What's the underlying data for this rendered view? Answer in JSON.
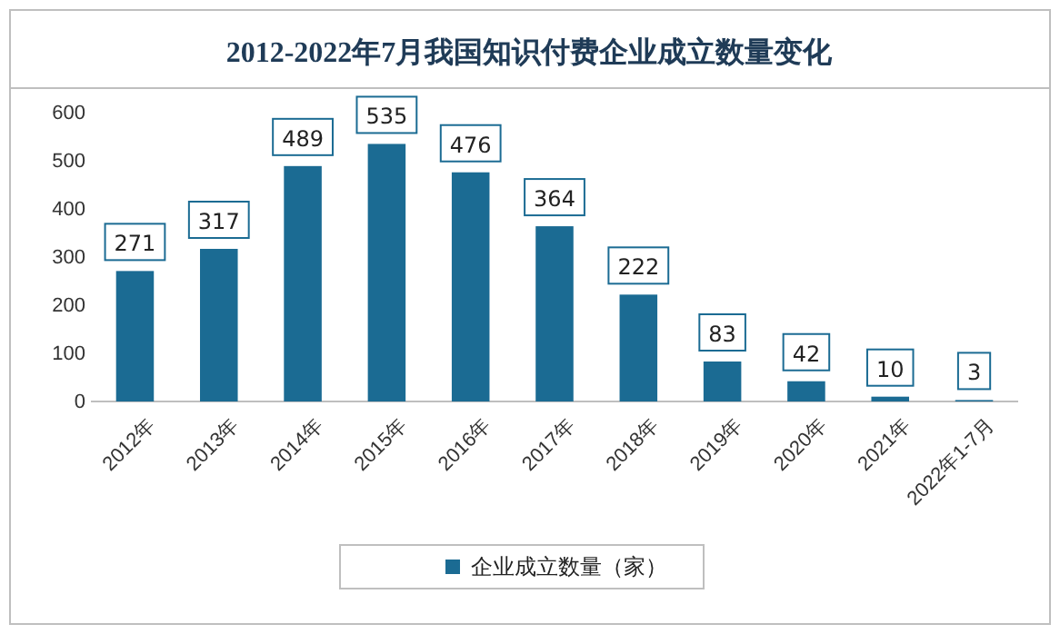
{
  "chart_data": {
    "type": "bar",
    "title": "2012-2022年7月我国知识付费企业成立数量变化",
    "categories": [
      "2012年",
      "2013年",
      "2014年",
      "2015年",
      "2016年",
      "2017年",
      "2018年",
      "2019年",
      "2020年",
      "2021年",
      "2022年1-7月"
    ],
    "series": [
      {
        "name": "企业成立数量（家）",
        "color": "#1b6b93",
        "values": [
          271,
          317,
          489,
          535,
          476,
          364,
          222,
          83,
          42,
          10,
          3
        ]
      }
    ],
    "ylim": [
      0,
      600
    ],
    "yticks": [
      0,
      100,
      200,
      300,
      400,
      500,
      600
    ],
    "data_labels": true,
    "legend": "bottom",
    "grid": false
  }
}
